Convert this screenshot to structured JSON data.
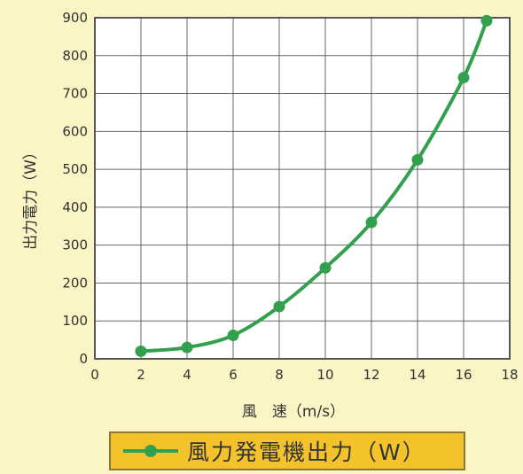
{
  "chart_data": {
    "type": "line",
    "x": [
      2,
      4,
      6,
      8,
      10,
      12,
      14,
      16,
      17
    ],
    "series": [
      {
        "name": "風力発電機出力（W）",
        "values": [
          20,
          30,
          62,
          138,
          240,
          360,
          525,
          742,
          892
        ]
      }
    ],
    "xlabel": "風　速（m/s）",
    "ylabel": "出力電力（W）",
    "xlim": [
      0,
      18
    ],
    "ylim": [
      0,
      900
    ],
    "xticks": [
      0,
      2,
      4,
      6,
      8,
      10,
      12,
      14,
      16,
      18
    ],
    "yticks": [
      0,
      100,
      200,
      300,
      400,
      500,
      600,
      700,
      800,
      900
    ],
    "grid": true,
    "legend_position": "bottom",
    "colors": {
      "series": "#33a04d",
      "background": "#fbf4c4",
      "plot": "#ffffff",
      "legend": "#f4c32c"
    }
  }
}
